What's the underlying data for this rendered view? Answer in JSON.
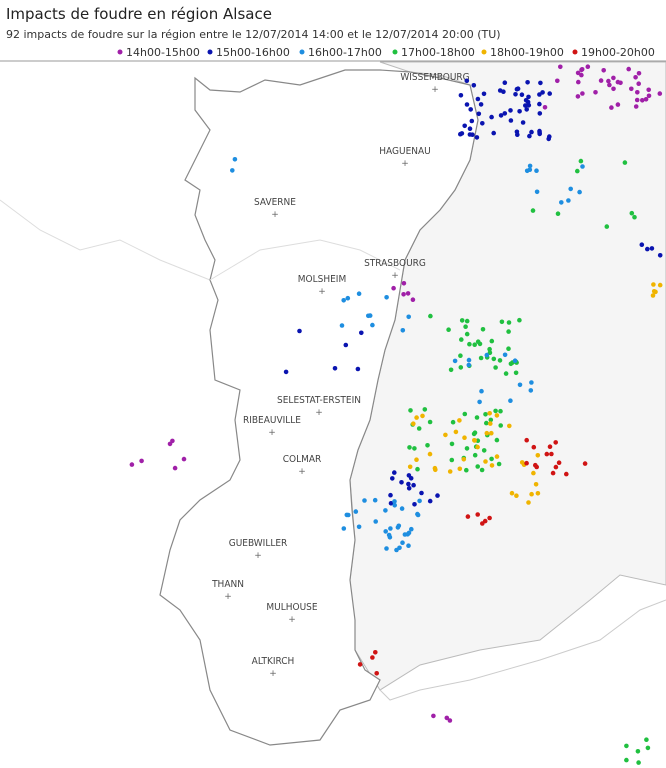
{
  "header": {
    "title": "Impacts de foudre en région Alsace",
    "subtitle": "92 impacts de foudre sur la région entre le 12/07/2014 14:00 et le 12/07/2014 20:00 (TU)"
  },
  "legend": [
    {
      "label": "14h00-15h00",
      "color": "#a020a8"
    },
    {
      "label": "15h00-16h00",
      "color": "#0a14b0"
    },
    {
      "label": "16h00-17h00",
      "color": "#1e8ee0"
    },
    {
      "label": "17h00-18h00",
      "color": "#20c040"
    },
    {
      "label": "18h00-19h00",
      "color": "#f0b400"
    },
    {
      "label": "19h00-20h00",
      "color": "#d01414"
    }
  ],
  "cities": [
    "WISSEMBOURG",
    "HAGUENAU",
    "SAVERNE",
    "STRASBOURG",
    "MOLSHEIM",
    "SELESTAT-ERSTEIN",
    "RIBEAUVILLE",
    "COLMAR",
    "GUEBWILLER",
    "THANN",
    "MULHOUSE",
    "ALTKIRCH"
  ]
}
